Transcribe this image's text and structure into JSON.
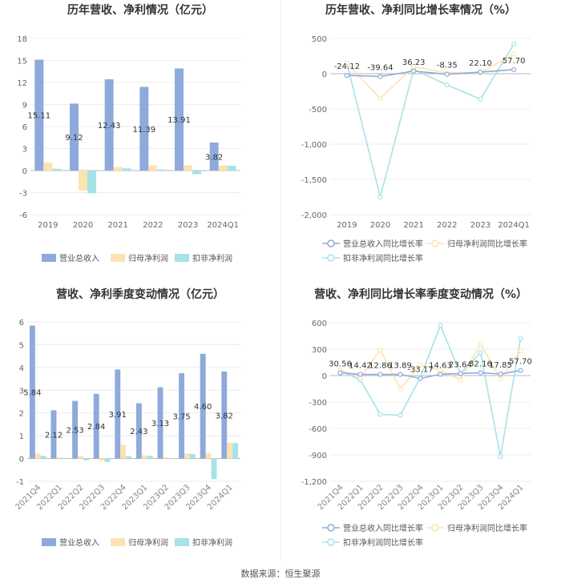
{
  "source": "数据来源：恒生聚源",
  "colors": {
    "revenue": "#8eaadb",
    "parent": "#fde3b2",
    "deducted": "#a6e3e7"
  },
  "chart_data": [
    {
      "type": "bar",
      "title": "历年营收、净利情况（亿元）",
      "categories": [
        "2019",
        "2020",
        "2021",
        "2022",
        "2023",
        "2024Q1"
      ],
      "ylim": [
        -6,
        18
      ],
      "yticks": [
        -6,
        -3,
        0,
        3,
        6,
        9,
        12,
        15,
        18
      ],
      "series": [
        {
          "name": "营业总收入",
          "values": [
            15.11,
            9.12,
            12.43,
            11.39,
            13.91,
            3.82
          ]
        },
        {
          "name": "归母净利润",
          "values": [
            1.1,
            -2.7,
            0.5,
            0.7,
            0.7,
            0.7
          ]
        },
        {
          "name": "扣非净利润",
          "values": [
            0.25,
            -3.1,
            0.3,
            0.15,
            -0.5,
            0.65
          ]
        }
      ],
      "data_labels": [
        "15.11",
        "9.12",
        "12.43",
        "11.39",
        "13.91",
        "3.82"
      ],
      "legend": "bottom"
    },
    {
      "type": "line",
      "title": "历年营收、净利同比增长率情况（%）",
      "categories": [
        "2019",
        "2020",
        "2021",
        "2022",
        "2023",
        "2024Q1"
      ],
      "ylim": [
        -2000,
        500
      ],
      "yticks": [
        -2000,
        -1500,
        -1000,
        -500,
        0,
        500
      ],
      "ytick_labels": [
        "-2,000",
        "-1,500",
        "-1,000",
        "-500",
        "0",
        "500"
      ],
      "series": [
        {
          "name": "营业总收入同比增长率",
          "values": [
            -24.12,
            -39.64,
            36.23,
            -8.35,
            22.1,
            57.7
          ]
        },
        {
          "name": "归母净利润同比增长率",
          "values": [
            150,
            -350,
            100,
            10,
            10,
            280
          ]
        },
        {
          "name": "扣非净利润同比增长率",
          "values": [
            150,
            -1750,
            60,
            -160,
            -360,
            420
          ]
        }
      ],
      "data_labels": [
        "-24.12",
        "-39.64",
        "36.23",
        "-8.35",
        "22.10",
        "57.70"
      ],
      "legend": "bottom"
    },
    {
      "type": "bar",
      "title": "营收、净利季度变动情况（亿元）",
      "categories": [
        "2021Q4",
        "2022Q1",
        "2022Q2",
        "2022Q3",
        "2022Q4",
        "2023Q1",
        "2023Q2",
        "2023Q3",
        "2023Q4",
        "2024Q1"
      ],
      "ylim": [
        -1,
        6
      ],
      "yticks": [
        -1,
        0,
        1,
        2,
        3,
        4,
        5,
        6
      ],
      "series": [
        {
          "name": "营业总收入",
          "values": [
            5.84,
            2.12,
            2.53,
            2.84,
            3.91,
            2.43,
            3.13,
            3.75,
            4.6,
            3.82
          ]
        },
        {
          "name": "归母净利润",
          "values": [
            0.22,
            0.05,
            0.12,
            -0.1,
            0.6,
            0.15,
            0.05,
            0.22,
            0.25,
            0.7
          ]
        },
        {
          "name": "扣非净利润",
          "values": [
            0.12,
            0.03,
            -0.08,
            -0.15,
            0.1,
            0.12,
            0.02,
            0.2,
            -0.9,
            0.68
          ]
        }
      ],
      "data_labels": [
        "5.84",
        "2.12",
        "2.53",
        "2.84",
        "3.91",
        "2.43",
        "3.13",
        "3.75",
        "4.60",
        "3.82"
      ],
      "legend": "bottom"
    },
    {
      "type": "line",
      "title": "营收、净利同比增长率季度变动情况（%）",
      "categories": [
        "2021Q4",
        "2022Q1",
        "2022Q2",
        "2022Q3",
        "2022Q4",
        "2023Q1",
        "2023Q2",
        "2023Q3",
        "2023Q4",
        "2024Q1"
      ],
      "ylim": [
        -1200,
        600
      ],
      "yticks": [
        -1200,
        -900,
        -600,
        -300,
        0,
        300,
        600
      ],
      "ytick_labels": [
        "-1,200",
        "-900",
        "-600",
        "-300",
        "0",
        "300",
        "600"
      ],
      "series": [
        {
          "name": "营业总收入同比增长率",
          "values": [
            30.56,
            14.42,
            12.86,
            13.89,
            -33.17,
            14.63,
            23.64,
            32.16,
            17.85,
            57.7
          ]
        },
        {
          "name": "归母净利润同比增长率",
          "values": [
            60,
            -20,
            290,
            -150,
            120,
            60,
            -50,
            360,
            -40,
            280
          ]
        },
        {
          "name": "扣非净利润同比增长率",
          "values": [
            60,
            -50,
            -440,
            -450,
            -20,
            570,
            20,
            260,
            -920,
            420
          ]
        }
      ],
      "data_labels": [
        "30.56",
        "14.42",
        "12.86",
        "13.89",
        "-33.17",
        "14.63",
        "23.64",
        "32.16",
        "17.85",
        "57.70"
      ],
      "legend": "bottom"
    }
  ]
}
